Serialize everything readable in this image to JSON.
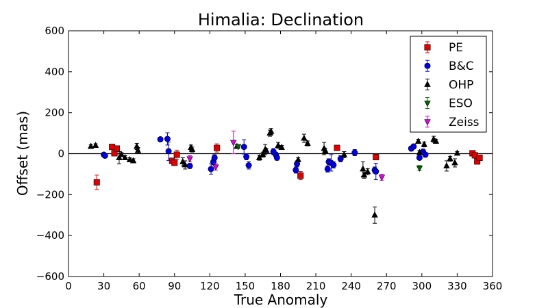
{
  "chart_data": {
    "type": "scatter",
    "title": "Himalia: Declination",
    "xlabel": "True Anomaly",
    "ylabel": "Offset (mas)",
    "xlim": [
      0,
      360
    ],
    "ylim": [
      -600,
      600
    ],
    "xticks": [
      0,
      30,
      60,
      90,
      120,
      150,
      180,
      210,
      240,
      270,
      300,
      330,
      360
    ],
    "yticks": [
      -600,
      -400,
      -200,
      0,
      200,
      400,
      600
    ],
    "xtick_labels": [
      "0",
      "30",
      "60",
      "90",
      "120",
      "150",
      "180",
      "210",
      "240",
      "270",
      "300",
      "330",
      "360"
    ],
    "ytick_labels": [
      "−600",
      "−400",
      "−200",
      "0",
      "200",
      "400",
      "600"
    ],
    "zero_line": true,
    "grid": false,
    "legend_position": "top-right",
    "series": [
      {
        "name": "PE",
        "marker": "square",
        "color": "#e00000",
        "points": [
          {
            "x": 24,
            "y": -140,
            "err": 35
          },
          {
            "x": 37,
            "y": 33,
            "err": 10
          },
          {
            "x": 39,
            "y": 2,
            "err": 10
          },
          {
            "x": 41,
            "y": 25,
            "err": 10
          },
          {
            "x": 88,
            "y": -35,
            "err": 12
          },
          {
            "x": 90,
            "y": -45,
            "err": 12
          },
          {
            "x": 92,
            "y": -5,
            "err": 22
          },
          {
            "x": 126,
            "y": 28,
            "err": 20
          },
          {
            "x": 197,
            "y": -107,
            "err": 20
          },
          {
            "x": 228,
            "y": 28,
            "err": 10
          },
          {
            "x": 261,
            "y": -17,
            "err": 10
          },
          {
            "x": 343,
            "y": 2,
            "err": 10
          },
          {
            "x": 345,
            "y": -8,
            "err": 10
          },
          {
            "x": 347,
            "y": -38,
            "err": 10
          },
          {
            "x": 349,
            "y": -20,
            "err": 10
          }
        ]
      },
      {
        "name": "B&C",
        "marker": "circle",
        "color": "#0000e0",
        "points": [
          {
            "x": 30,
            "y": -5,
            "err": 10
          },
          {
            "x": 31,
            "y": -10,
            "err": 10
          },
          {
            "x": 78,
            "y": 70,
            "err": 10
          },
          {
            "x": 84,
            "y": 72,
            "err": 30
          },
          {
            "x": 85,
            "y": 12,
            "err": 45
          },
          {
            "x": 103,
            "y": -60,
            "err": 12
          },
          {
            "x": 121,
            "y": -75,
            "err": 25
          },
          {
            "x": 123,
            "y": -40,
            "err": 15
          },
          {
            "x": 124,
            "y": -20,
            "err": 15
          },
          {
            "x": 149,
            "y": 33,
            "err": 35
          },
          {
            "x": 151,
            "y": -15,
            "err": 15
          },
          {
            "x": 153,
            "y": -57,
            "err": 18
          },
          {
            "x": 174,
            "y": 10,
            "err": 15
          },
          {
            "x": 176,
            "y": -5,
            "err": 12
          },
          {
            "x": 177,
            "y": -20,
            "err": 12
          },
          {
            "x": 193,
            "y": -80,
            "err": 15
          },
          {
            "x": 194,
            "y": -50,
            "err": 15
          },
          {
            "x": 220,
            "y": -75,
            "err": 15
          },
          {
            "x": 221,
            "y": -40,
            "err": 15
          },
          {
            "x": 223,
            "y": -45,
            "err": 40
          },
          {
            "x": 225,
            "y": -55,
            "err": 15
          },
          {
            "x": 231,
            "y": -25,
            "err": 15
          },
          {
            "x": 243,
            "y": 5,
            "err": 15
          },
          {
            "x": 260,
            "y": -80,
            "err": 15
          },
          {
            "x": 261,
            "y": -87,
            "err": 40
          },
          {
            "x": 291,
            "y": 25,
            "err": 12
          },
          {
            "x": 293,
            "y": 35,
            "err": 12
          },
          {
            "x": 298,
            "y": -20,
            "err": 10
          },
          {
            "x": 301,
            "y": 10,
            "err": 12
          },
          {
            "x": 303,
            "y": -5,
            "err": 12
          }
        ]
      },
      {
        "name": "OHP",
        "marker": "triangle-up",
        "color": "#000000",
        "points": [
          {
            "x": 19,
            "y": 35,
            "err": 8
          },
          {
            "x": 23,
            "y": 40,
            "err": 8
          },
          {
            "x": 43,
            "y": -20,
            "err": 30
          },
          {
            "x": 45,
            "y": -5,
            "err": 10
          },
          {
            "x": 48,
            "y": -20,
            "err": 10
          },
          {
            "x": 52,
            "y": -30,
            "err": 10
          },
          {
            "x": 55,
            "y": -35,
            "err": 10
          },
          {
            "x": 58,
            "y": 35,
            "err": 15
          },
          {
            "x": 59,
            "y": 15,
            "err": 15
          },
          {
            "x": 97,
            "y": -40,
            "err": 20
          },
          {
            "x": 99,
            "y": -55,
            "err": 20
          },
          {
            "x": 104,
            "y": 30,
            "err": 12
          },
          {
            "x": 105,
            "y": 20,
            "err": 12
          },
          {
            "x": 143,
            "y": 35,
            "err": 8
          },
          {
            "x": 162,
            "y": -20,
            "err": 12
          },
          {
            "x": 165,
            "y": -5,
            "err": 12
          },
          {
            "x": 167,
            "y": 20,
            "err": 25
          },
          {
            "x": 168,
            "y": 15,
            "err": 10
          },
          {
            "x": 171,
            "y": 100,
            "err": 15
          },
          {
            "x": 172,
            "y": 108,
            "err": 15
          },
          {
            "x": 178,
            "y": 40,
            "err": 15
          },
          {
            "x": 181,
            "y": 30,
            "err": 10
          },
          {
            "x": 195,
            "y": -30,
            "err": 10
          },
          {
            "x": 200,
            "y": 75,
            "err": 20
          },
          {
            "x": 203,
            "y": 50,
            "err": 12
          },
          {
            "x": 217,
            "y": 25,
            "err": 30
          },
          {
            "x": 218,
            "y": 15,
            "err": 12
          },
          {
            "x": 234,
            "y": -5,
            "err": 15
          },
          {
            "x": 250,
            "y": -75,
            "err": 35
          },
          {
            "x": 251,
            "y": -105,
            "err": 15
          },
          {
            "x": 254,
            "y": -88,
            "err": 15
          },
          {
            "x": 260,
            "y": -300,
            "err": 40
          },
          {
            "x": 297,
            "y": 60,
            "err": 10
          },
          {
            "x": 298,
            "y": 5,
            "err": 10
          },
          {
            "x": 302,
            "y": 45,
            "err": 12
          },
          {
            "x": 310,
            "y": 70,
            "err": 15
          },
          {
            "x": 312,
            "y": 60,
            "err": 10
          },
          {
            "x": 321,
            "y": -60,
            "err": 25
          },
          {
            "x": 324,
            "y": -25,
            "err": 12
          },
          {
            "x": 328,
            "y": -45,
            "err": 20
          },
          {
            "x": 330,
            "y": 2,
            "err": 8
          }
        ]
      },
      {
        "name": "ESO",
        "marker": "triangle-down",
        "color": "#006400",
        "points": [
          {
            "x": 144,
            "y": 35,
            "err": 6
          },
          {
            "x": 298,
            "y": -70,
            "err": 12
          }
        ]
      },
      {
        "name": "Zeiss",
        "marker": "triangle-down",
        "color": "#e000e0",
        "points": [
          {
            "x": 103,
            "y": -25,
            "err": 15
          },
          {
            "x": 125,
            "y": -65,
            "err": 15
          },
          {
            "x": 140,
            "y": 55,
            "err": 55
          },
          {
            "x": 266,
            "y": -115,
            "err": 15
          }
        ]
      }
    ]
  }
}
